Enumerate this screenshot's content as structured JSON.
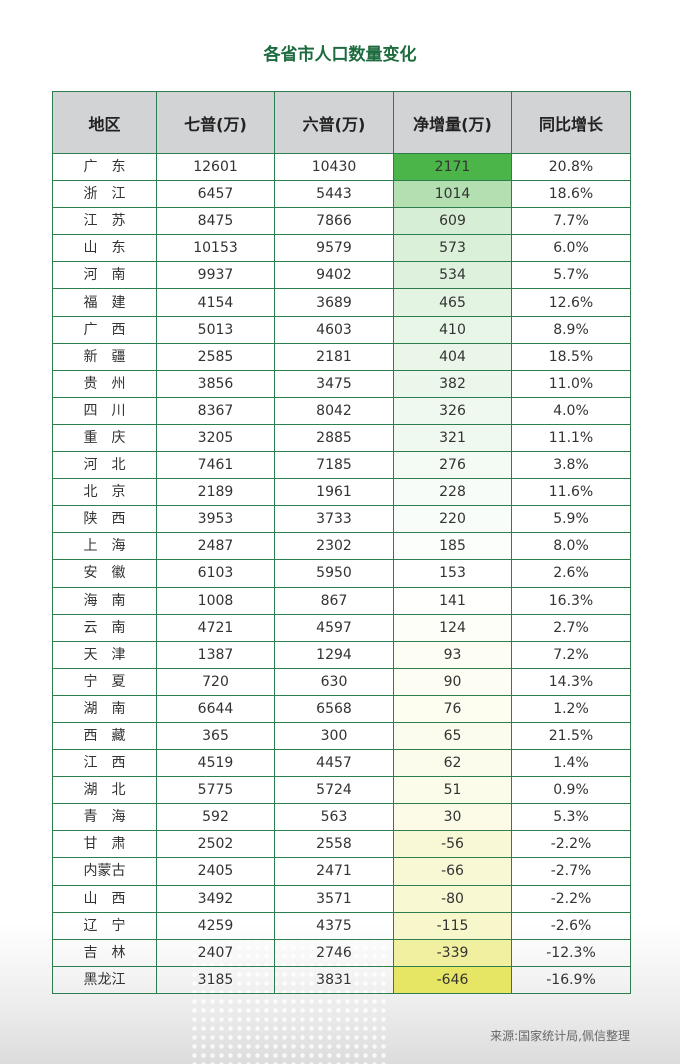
{
  "title": "各省市人口数量变化",
  "headers": [
    "地区",
    "七普(万)",
    "六普(万)",
    "净增量(万)",
    "同比增长"
  ],
  "rows": [
    [
      "广　东",
      "12601",
      "10430",
      "2171",
      "20.8%"
    ],
    [
      "浙　江",
      "6457",
      "5443",
      "1014",
      "18.6%"
    ],
    [
      "江　苏",
      "8475",
      "7866",
      "609",
      "7.7%"
    ],
    [
      "山　东",
      "10153",
      "9579",
      "573",
      "6.0%"
    ],
    [
      "河　南",
      "9937",
      "9402",
      "534",
      "5.7%"
    ],
    [
      "福　建",
      "4154",
      "3689",
      "465",
      "12.6%"
    ],
    [
      "广　西",
      "5013",
      "4603",
      "410",
      "8.9%"
    ],
    [
      "新　疆",
      "2585",
      "2181",
      "404",
      "18.5%"
    ],
    [
      "贵　州",
      "3856",
      "3475",
      "382",
      "11.0%"
    ],
    [
      "四　川",
      "8367",
      "8042",
      "326",
      "4.0%"
    ],
    [
      "重　庆",
      "3205",
      "2885",
      "321",
      "11.1%"
    ],
    [
      "河　北",
      "7461",
      "7185",
      "276",
      "3.8%"
    ],
    [
      "北　京",
      "2189",
      "1961",
      "228",
      "11.6%"
    ],
    [
      "陕　西",
      "3953",
      "3733",
      "220",
      "5.9%"
    ],
    [
      "上　海",
      "2487",
      "2302",
      "185",
      "8.0%"
    ],
    [
      "安　徽",
      "6103",
      "5950",
      "153",
      "2.6%"
    ],
    [
      "海　南",
      "1008",
      "867",
      "141",
      "16.3%"
    ],
    [
      "云　南",
      "4721",
      "4597",
      "124",
      "2.7%"
    ],
    [
      "天　津",
      "1387",
      "1294",
      "93",
      "7.2%"
    ],
    [
      "宁　夏",
      "720",
      "630",
      "90",
      "14.3%"
    ],
    [
      "湖　南",
      "6644",
      "6568",
      "76",
      "1.2%"
    ],
    [
      "西　藏",
      "365",
      "300",
      "65",
      "21.5%"
    ],
    [
      "江　西",
      "4519",
      "4457",
      "62",
      "1.4%"
    ],
    [
      "湖　北",
      "5775",
      "5724",
      "51",
      "0.9%"
    ],
    [
      "青　海",
      "592",
      "563",
      "30",
      "5.3%"
    ],
    [
      "甘　肃",
      "2502",
      "2558",
      "-56",
      "-2.2%"
    ],
    [
      "内蒙古",
      "2405",
      "2471",
      "-66",
      "-2.7%"
    ],
    [
      "山　西",
      "3492",
      "3571",
      "-80",
      "-2.2%"
    ],
    [
      "辽　宁",
      "4259",
      "4375",
      "-115",
      "-2.6%"
    ],
    [
      "吉　林",
      "2407",
      "2746",
      "-339",
      "-12.3%"
    ],
    [
      "黑龙江",
      "3185",
      "3831",
      "-646",
      "-16.9%"
    ]
  ],
  "colors": {
    "max": "#4cb549",
    "mid": "#ffffff",
    "min": "#e6e664",
    "border": "#2e7d4f",
    "title": "#1d6b3f",
    "header_bg": "#d2d3d5"
  },
  "source": "来源:国家统计局,佩信整理"
}
